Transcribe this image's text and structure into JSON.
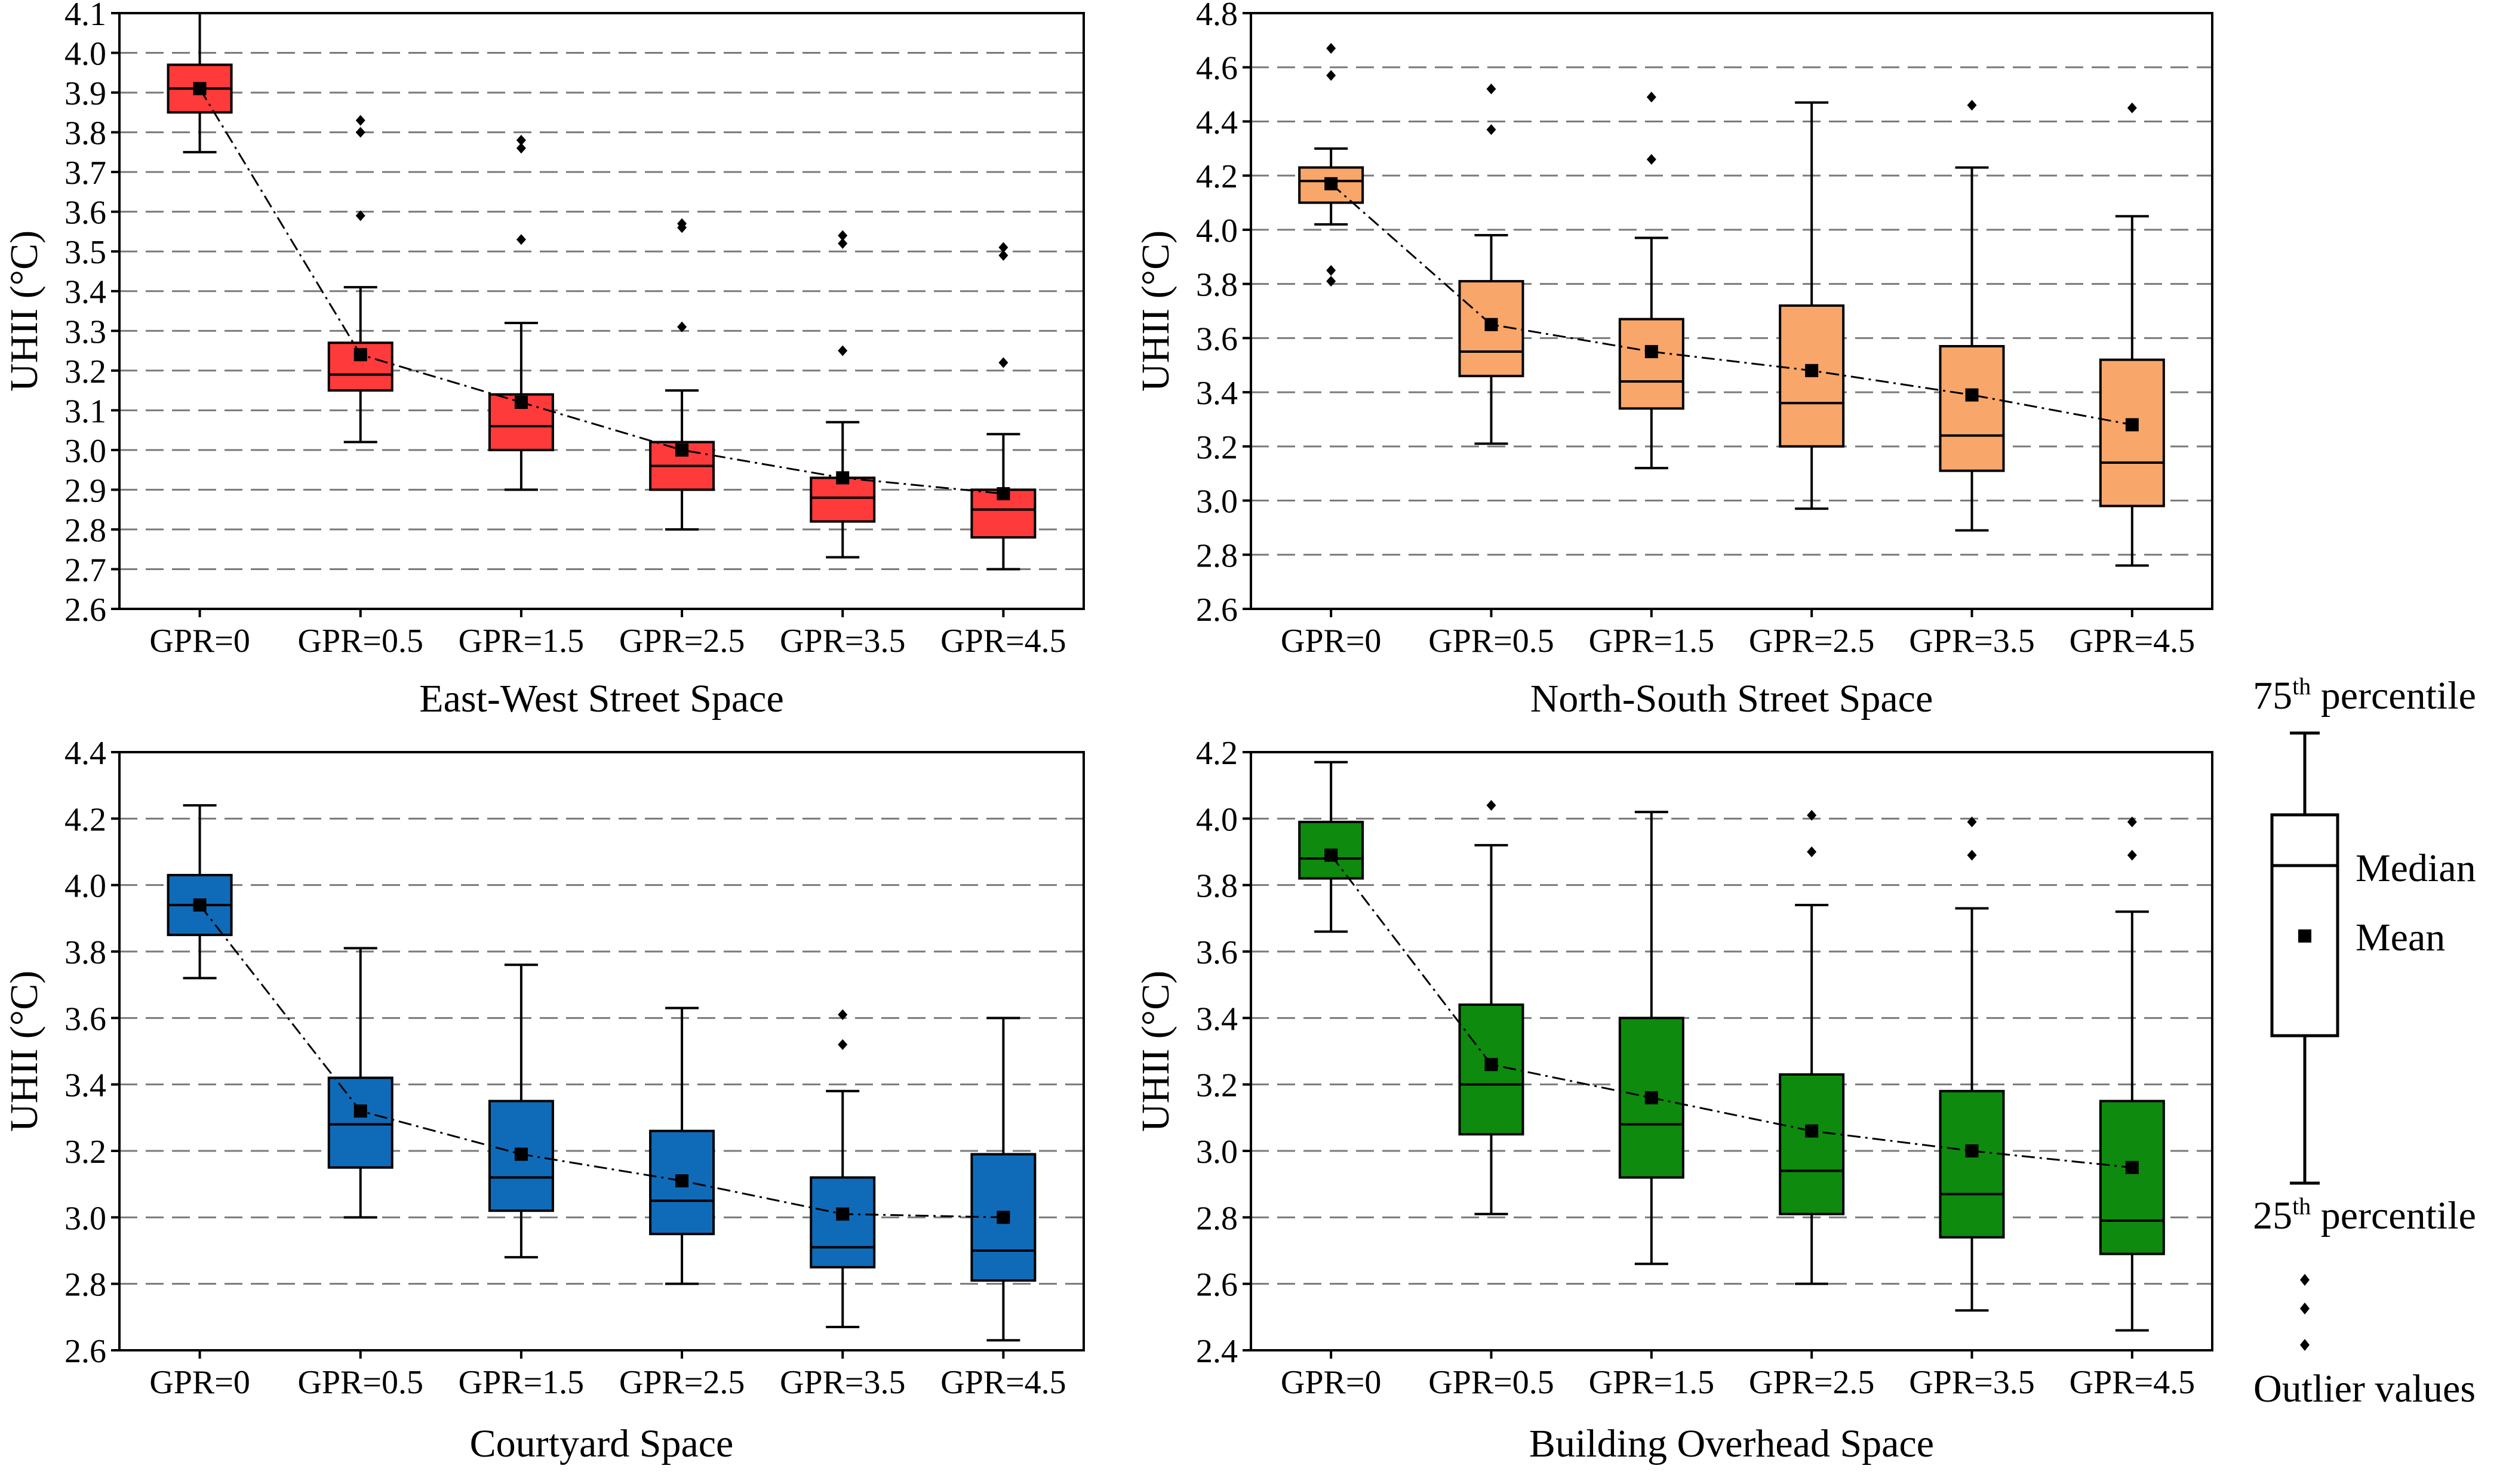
{
  "chart_data": [
    {
      "type": "box",
      "title": "",
      "xlabel": "East-West Street Space",
      "ylabel": "UHII (°C)",
      "ylim": [
        2.6,
        4.1
      ],
      "yticks": [
        "2.6",
        "2.7",
        "2.8",
        "2.9",
        "3.0",
        "3.1",
        "3.2",
        "3.3",
        "3.4",
        "3.5",
        "3.6",
        "3.7",
        "3.8",
        "3.9",
        "4.0",
        "4.1"
      ],
      "grid": "horizontal-dashed",
      "color": "#ff3a3a",
      "categories": [
        "GPR=0",
        "GPR=0.5",
        "GPR=1.5",
        "GPR=2.5",
        "GPR=3.5",
        "GPR=4.5"
      ],
      "boxes": [
        {
          "whisker_low": 3.75,
          "q1": 3.85,
          "median": 3.91,
          "q3": 3.97,
          "whisker_high": 4.1,
          "mean": 3.91,
          "outliers": []
        },
        {
          "whisker_low": 3.02,
          "q1": 3.15,
          "median": 3.19,
          "q3": 3.27,
          "whisker_high": 3.41,
          "mean": 3.24,
          "outliers": [
            3.59,
            3.8,
            3.83
          ]
        },
        {
          "whisker_low": 2.9,
          "q1": 3.0,
          "median": 3.06,
          "q3": 3.14,
          "whisker_high": 3.32,
          "mean": 3.12,
          "outliers": [
            3.53,
            3.76,
            3.78
          ]
        },
        {
          "whisker_low": 2.8,
          "q1": 2.9,
          "median": 2.96,
          "q3": 3.02,
          "whisker_high": 3.15,
          "mean": 3.0,
          "outliers": [
            3.31,
            3.56,
            3.57
          ]
        },
        {
          "whisker_low": 2.73,
          "q1": 2.82,
          "median": 2.88,
          "q3": 2.93,
          "whisker_high": 3.07,
          "mean": 2.93,
          "outliers": [
            3.25,
            3.52,
            3.54
          ]
        },
        {
          "whisker_low": 2.7,
          "q1": 2.78,
          "median": 2.85,
          "q3": 2.9,
          "whisker_high": 3.04,
          "mean": 2.89,
          "outliers": [
            3.22,
            3.49,
            3.51
          ]
        }
      ]
    },
    {
      "type": "box",
      "title": "",
      "xlabel": "North-South Street Space",
      "ylabel": "UHII (°C)",
      "ylim": [
        2.6,
        4.8
      ],
      "yticks": [
        "2.6",
        "2.8",
        "3.0",
        "3.2",
        "3.4",
        "3.6",
        "3.8",
        "4.0",
        "4.2",
        "4.4",
        "4.6",
        "4.8"
      ],
      "grid": "horizontal-dashed",
      "color": "#f9a66a",
      "categories": [
        "GPR=0",
        "GPR=0.5",
        "GPR=1.5",
        "GPR=2.5",
        "GPR=3.5",
        "GPR=4.5"
      ],
      "boxes": [
        {
          "whisker_low": 4.02,
          "q1": 4.1,
          "median": 4.18,
          "q3": 4.23,
          "whisker_high": 4.3,
          "mean": 4.17,
          "outliers": [
            3.81,
            3.85,
            4.57,
            4.67
          ]
        },
        {
          "whisker_low": 3.21,
          "q1": 3.46,
          "median": 3.55,
          "q3": 3.81,
          "whisker_high": 3.98,
          "mean": 3.65,
          "outliers": [
            4.37,
            4.52
          ]
        },
        {
          "whisker_low": 3.12,
          "q1": 3.34,
          "median": 3.44,
          "q3": 3.67,
          "whisker_high": 3.97,
          "mean": 3.55,
          "outliers": [
            4.26,
            4.49
          ]
        },
        {
          "whisker_low": 2.97,
          "q1": 3.2,
          "median": 3.36,
          "q3": 3.72,
          "whisker_high": 4.47,
          "mean": 3.48,
          "outliers": []
        },
        {
          "whisker_low": 2.89,
          "q1": 3.11,
          "median": 3.24,
          "q3": 3.57,
          "whisker_high": 4.23,
          "mean": 3.39,
          "outliers": [
            4.46
          ]
        },
        {
          "whisker_low": 2.76,
          "q1": 2.98,
          "median": 3.14,
          "q3": 3.52,
          "whisker_high": 4.05,
          "mean": 3.28,
          "outliers": [
            4.45
          ]
        }
      ]
    },
    {
      "type": "box",
      "title": "",
      "xlabel": "Courtyard Space",
      "ylabel": "UHII (°C)",
      "ylim": [
        2.6,
        4.4
      ],
      "yticks": [
        "2.6",
        "2.8",
        "3.0",
        "3.2",
        "3.4",
        "3.6",
        "3.8",
        "4.0",
        "4.2",
        "4.4"
      ],
      "grid": "horizontal-dashed",
      "color": "#0f6bb8",
      "categories": [
        "GPR=0",
        "GPR=0.5",
        "GPR=1.5",
        "GPR=2.5",
        "GPR=3.5",
        "GPR=4.5"
      ],
      "boxes": [
        {
          "whisker_low": 3.72,
          "q1": 3.85,
          "median": 3.94,
          "q3": 4.03,
          "whisker_high": 4.24,
          "mean": 3.94,
          "outliers": []
        },
        {
          "whisker_low": 3.0,
          "q1": 3.15,
          "median": 3.28,
          "q3": 3.42,
          "whisker_high": 3.81,
          "mean": 3.32,
          "outliers": []
        },
        {
          "whisker_low": 2.88,
          "q1": 3.02,
          "median": 3.12,
          "q3": 3.35,
          "whisker_high": 3.76,
          "mean": 3.19,
          "outliers": []
        },
        {
          "whisker_low": 2.8,
          "q1": 2.95,
          "median": 3.05,
          "q3": 3.26,
          "whisker_high": 3.63,
          "mean": 3.11,
          "outliers": []
        },
        {
          "whisker_low": 2.67,
          "q1": 2.85,
          "median": 2.91,
          "q3": 3.12,
          "whisker_high": 3.38,
          "mean": 3.01,
          "outliers": [
            3.52,
            3.61
          ]
        },
        {
          "whisker_low": 2.63,
          "q1": 2.81,
          "median": 2.9,
          "q3": 3.19,
          "whisker_high": 3.6,
          "mean": 3.0,
          "outliers": []
        }
      ]
    },
    {
      "type": "box",
      "title": "",
      "xlabel": "Building Overhead Space",
      "ylabel": "UHII (°C)",
      "ylim": [
        2.4,
        4.2
      ],
      "yticks": [
        "2.4",
        "2.6",
        "2.8",
        "3.0",
        "3.2",
        "3.4",
        "3.6",
        "3.8",
        "4.0",
        "4.2"
      ],
      "grid": "horizontal-dashed",
      "color": "#0e8a0e",
      "categories": [
        "GPR=0",
        "GPR=0.5",
        "GPR=1.5",
        "GPR=2.5",
        "GPR=3.5",
        "GPR=4.5"
      ],
      "boxes": [
        {
          "whisker_low": 3.66,
          "q1": 3.82,
          "median": 3.88,
          "q3": 3.99,
          "whisker_high": 4.17,
          "mean": 3.89,
          "outliers": []
        },
        {
          "whisker_low": 2.81,
          "q1": 3.05,
          "median": 3.2,
          "q3": 3.44,
          "whisker_high": 3.92,
          "mean": 3.26,
          "outliers": [
            4.04
          ]
        },
        {
          "whisker_low": 2.66,
          "q1": 2.92,
          "median": 3.08,
          "q3": 3.4,
          "whisker_high": 4.02,
          "mean": 3.16,
          "outliers": []
        },
        {
          "whisker_low": 2.6,
          "q1": 2.81,
          "median": 2.94,
          "q3": 3.23,
          "whisker_high": 3.74,
          "mean": 3.06,
          "outliers": [
            3.9,
            4.01
          ]
        },
        {
          "whisker_low": 2.52,
          "q1": 2.74,
          "median": 2.87,
          "q3": 3.18,
          "whisker_high": 3.73,
          "mean": 3.0,
          "outliers": [
            3.89,
            3.99
          ]
        },
        {
          "whisker_low": 2.46,
          "q1": 2.69,
          "median": 2.79,
          "q3": 3.15,
          "whisker_high": 3.72,
          "mean": 2.95,
          "outliers": [
            3.89,
            3.99
          ]
        }
      ]
    }
  ],
  "legend": {
    "p75_base": "75",
    "p75_sup": "th",
    "p75_suffix": " percentile",
    "median": "Median",
    "mean": "Mean",
    "p25_base": "25",
    "p25_sup": "th",
    "p25_suffix": " percentile",
    "outliers": "Outlier values"
  }
}
